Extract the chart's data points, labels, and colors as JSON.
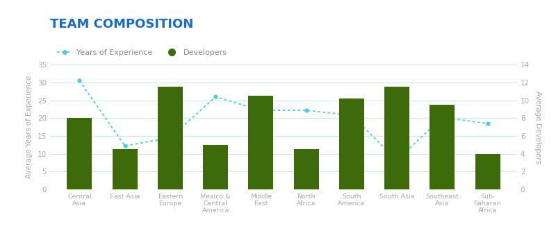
{
  "title": "TEAM COMPOSITION",
  "title_color": "#1b6cc8",
  "categories": [
    "Central\nAsia",
    "East Asia",
    "Eastern\nEurope",
    "Mexico &\nCentral\nAmerica",
    "Middle\nEast",
    "North\nAfrica",
    "South\nAmerica",
    "South Asia",
    "Southeast\nAsia",
    "Sub-\nSaharan\nAfrica"
  ],
  "bar_values": [
    8.0,
    4.5,
    11.5,
    5.0,
    10.5,
    4.5,
    10.2,
    11.5,
    9.5,
    4.0
  ],
  "bar_color": "#3d6b0a",
  "experience_values": [
    30.5,
    12.2,
    14.5,
    26.0,
    22.2,
    22.2,
    20.8,
    8.2,
    20.2,
    18.5
  ],
  "line_color": "#4dcde0",
  "ylabel_left": "Average Years of Experience",
  "ylabel_right": "Average Developers",
  "ylim_left": [
    0,
    35
  ],
  "ylim_right": [
    0,
    14
  ],
  "yticks_left": [
    0,
    5,
    10,
    15,
    20,
    25,
    30,
    35
  ],
  "yticks_right": [
    0,
    2,
    4,
    6,
    8,
    10,
    12,
    14
  ],
  "legend_experience": "Years of Experience",
  "legend_developers": "Developers",
  "background_color": "#ffffff",
  "grid_color": "#cde8f5"
}
